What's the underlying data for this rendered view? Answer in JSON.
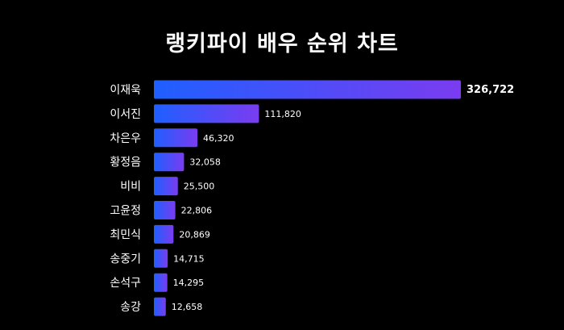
{
  "chart_data": {
    "type": "bar",
    "orientation": "horizontal",
    "title": "랭키파이 배우 순위 차트",
    "categories": [
      "이재욱",
      "이서진",
      "차은우",
      "황정음",
      "비비",
      "고윤정",
      "최민식",
      "송중기",
      "손석구",
      "송강"
    ],
    "values": [
      326722,
      111820,
      46320,
      32058,
      25500,
      22806,
      20869,
      14715,
      14295,
      12658
    ],
    "value_labels": [
      "326,722",
      "111,820",
      "46,320",
      "32,058",
      "25,500",
      "22,806",
      "20,869",
      "14,715",
      "14,295",
      "12,658"
    ],
    "xlim": [
      0,
      326722
    ],
    "grid": false,
    "legend": "none",
    "colors": {
      "background": "#000000",
      "bar_start": "#1f5fff",
      "bar_end": "#7a3cf0",
      "text": "#ffffff"
    }
  }
}
